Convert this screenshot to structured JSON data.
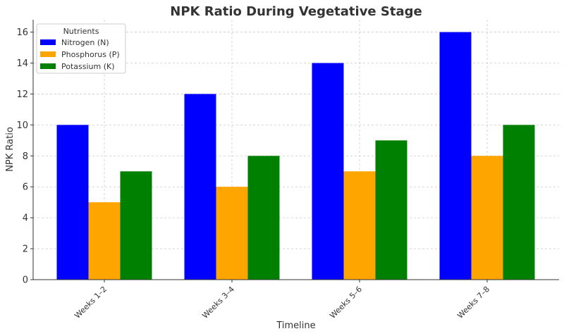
{
  "chart_data": {
    "type": "bar",
    "title": "NPK Ratio During Vegetative Stage",
    "xlabel": "Timeline",
    "ylabel": "NPK Ratio",
    "categories": [
      "Weeks 1–2",
      "Weeks 3–4",
      "Weeks 5–6",
      "Weeks 7–8"
    ],
    "series": [
      {
        "name": "Nitrogen (N)",
        "color": "#0000ff",
        "values": [
          10,
          12,
          14,
          16
        ]
      },
      {
        "name": "Phosphorus (P)",
        "color": "#ffa500",
        "values": [
          5,
          6,
          7,
          8
        ]
      },
      {
        "name": "Potassium (K)",
        "color": "#008000",
        "values": [
          7,
          8,
          9,
          10
        ]
      }
    ],
    "ylim": [
      0,
      16.8
    ],
    "yticks": [
      0,
      2,
      4,
      6,
      8,
      10,
      12,
      14,
      16
    ],
    "grid": true,
    "legend": {
      "title": "Nutrients",
      "placement": "top-left"
    }
  }
}
